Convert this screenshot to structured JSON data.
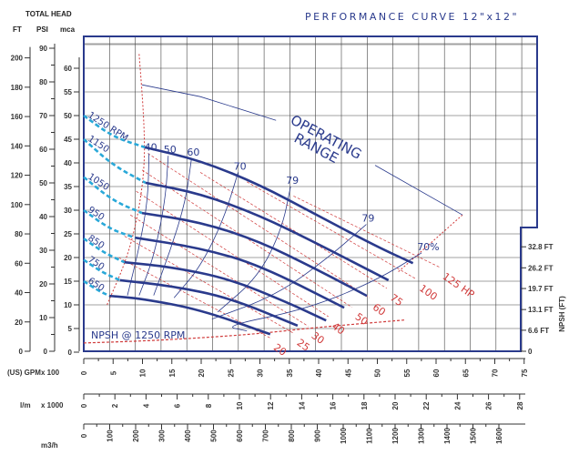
{
  "title": "PERFORMANCE CURVE 12\"x12\"",
  "header": {
    "total_head": "TOTAL HEAD",
    "ft": "FT",
    "psi": "PSI",
    "mca": "mca"
  },
  "colors": {
    "frame": "#2a3a8c",
    "curve": "#2a3a8c",
    "dashed_curve": "#29a8d8",
    "power": "#d03a3a",
    "grid": "#444444"
  },
  "chart_data": {
    "type": "line",
    "xlabel": "(US) GPM  x 100",
    "x_range": [
      0,
      75
    ],
    "ylabel_units": [
      "FT",
      "PSI",
      "mca"
    ],
    "y_range_mca": [
      0,
      65
    ],
    "axes": {
      "ft_ticks": [
        0,
        20,
        40,
        60,
        80,
        100,
        120,
        140,
        160,
        180,
        200
      ],
      "psi_ticks": [
        0,
        10,
        20,
        30,
        40,
        50,
        60,
        70,
        80,
        90
      ],
      "mca_ticks": [
        0,
        5,
        10,
        15,
        20,
        25,
        30,
        35,
        40,
        45,
        50,
        55,
        60
      ],
      "gpm_ticks": [
        0,
        5,
        10,
        15,
        20,
        25,
        30,
        35,
        40,
        45,
        50,
        55,
        60,
        65,
        70,
        75
      ],
      "lm": {
        "label": "l/m",
        "multiplier": "x 1000",
        "ticks": [
          0,
          2,
          4,
          6,
          8,
          10,
          12,
          14,
          16,
          18,
          20,
          22,
          24,
          26,
          28
        ]
      },
      "m3h": {
        "label": "m3/h",
        "ticks": [
          0,
          100,
          200,
          300,
          400,
          500,
          600,
          700,
          800,
          900,
          1000,
          1100,
          1200,
          1300,
          1400,
          1500,
          1600
        ]
      },
      "gpm_label": "(US) GPM",
      "gpm_multiplier": "x 100",
      "npsh": {
        "label": "NPSH (FT)",
        "ticks": [
          "0",
          "6.6 FT",
          "13.1 FT",
          "19.7 FT",
          "26.2 FT",
          "32.8 FT"
        ],
        "values": [
          0,
          6.6,
          13.1,
          19.7,
          26.2,
          32.8
        ]
      }
    },
    "grid": true,
    "series": [
      {
        "name": "1250 RPM",
        "dashed": [
          [
            0,
            50
          ],
          [
            5,
            45.5
          ],
          [
            10.5,
            43.3
          ]
        ],
        "solid": [
          [
            10.5,
            43.3
          ],
          [
            20,
            40.5
          ],
          [
            30,
            35.5
          ],
          [
            40,
            29
          ],
          [
            50,
            22.5
          ],
          [
            56.5,
            18.8
          ]
        ]
      },
      {
        "name": "1150",
        "dashed": [
          [
            0,
            45
          ],
          [
            5,
            39.5
          ],
          [
            10.6,
            35.8
          ]
        ],
        "solid": [
          [
            10.6,
            35.8
          ],
          [
            20,
            33.5
          ],
          [
            30,
            29
          ],
          [
            40,
            23
          ],
          [
            52.3,
            15.2
          ]
        ]
      },
      {
        "name": "1050",
        "dashed": [
          [
            0,
            37
          ],
          [
            5,
            32
          ],
          [
            10,
            29.4
          ]
        ],
        "solid": [
          [
            10,
            29.4
          ],
          [
            20,
            27.5
          ],
          [
            30,
            23.5
          ],
          [
            40,
            17.5
          ],
          [
            48.6,
            11.9
          ]
        ]
      },
      {
        "name": "950",
        "dashed": [
          [
            0,
            30
          ],
          [
            4.5,
            26
          ],
          [
            8.8,
            24.2
          ]
        ],
        "solid": [
          [
            8.8,
            24.2
          ],
          [
            20,
            22
          ],
          [
            30,
            18.5
          ],
          [
            44.7,
            9.4
          ]
        ]
      },
      {
        "name": "850",
        "dashed": [
          [
            0,
            24
          ],
          [
            3.5,
            21
          ],
          [
            7,
            19
          ]
        ],
        "solid": [
          [
            7,
            19
          ],
          [
            15,
            18
          ],
          [
            25,
            15.5
          ],
          [
            35,
            10.5
          ],
          [
            41.6,
            6.7
          ]
        ]
      },
      {
        "name": "750",
        "dashed": [
          [
            0,
            19.5
          ],
          [
            3,
            17
          ],
          [
            6.2,
            15.2
          ]
        ],
        "solid": [
          [
            6.2,
            15.2
          ],
          [
            15,
            14
          ],
          [
            25,
            11.5
          ],
          [
            36.7,
            5.6
          ]
        ]
      },
      {
        "name": "650",
        "dashed": [
          [
            0,
            15
          ],
          [
            2.5,
            13
          ],
          [
            4.4,
            11.9
          ]
        ],
        "solid": [
          [
            4.4,
            11.9
          ],
          [
            10,
            11.3
          ],
          [
            20,
            9
          ],
          [
            32,
            3.8
          ]
        ]
      }
    ],
    "efficiency_lines": [
      {
        "label": "40",
        "points": [
          [
            11.2,
            42
          ],
          [
            11,
            32
          ],
          [
            9.5,
            22
          ],
          [
            7.5,
            12
          ]
        ]
      },
      {
        "label": "50",
        "points": [
          [
            14.5,
            41.5
          ],
          [
            14,
            32
          ],
          [
            12,
            20
          ],
          [
            9.5,
            12
          ]
        ]
      },
      {
        "label": "60",
        "points": [
          [
            18.5,
            41
          ],
          [
            17.5,
            32
          ],
          [
            15,
            22
          ],
          [
            12,
            12
          ]
        ]
      },
      {
        "label": "70",
        "points": [
          [
            26.5,
            38
          ],
          [
            24,
            28
          ],
          [
            20,
            18
          ],
          [
            15.5,
            11.5
          ]
        ]
      },
      {
        "label": "79",
        "points": [
          [
            35.5,
            35
          ],
          [
            34,
            26
          ],
          [
            30,
            16
          ],
          [
            23,
            8.5
          ]
        ]
      },
      {
        "label": "79",
        "points": [
          [
            48.5,
            27
          ],
          [
            42,
            20
          ],
          [
            33,
            12
          ],
          [
            22,
            7
          ]
        ]
      },
      {
        "label": "70%",
        "points": [
          [
            58,
            21
          ],
          [
            50,
            15
          ],
          [
            38,
            9
          ],
          [
            24,
            5.5
          ],
          [
            28,
            4.5
          ]
        ]
      }
    ],
    "power_lines": [
      {
        "label": "20",
        "points": [
          [
            6,
            20
          ],
          [
            32,
            3
          ]
        ]
      },
      {
        "label": "25",
        "points": [
          [
            7,
            24.5
          ],
          [
            36,
            4
          ]
        ]
      },
      {
        "label": "30",
        "points": [
          [
            8,
            29
          ],
          [
            38.5,
            5.5
          ]
        ]
      },
      {
        "label": "40",
        "points": [
          [
            9,
            34
          ],
          [
            42,
            7.5
          ]
        ]
      },
      {
        "label": "50",
        "points": [
          [
            10,
            38.5
          ],
          [
            46,
            9.5
          ]
        ]
      },
      {
        "label": "60",
        "points": [
          [
            11,
            42
          ],
          [
            49,
            11.5
          ]
        ]
      },
      {
        "label": "75",
        "points": [
          [
            20,
            38
          ],
          [
            52,
            13.5
          ]
        ]
      },
      {
        "label": "100",
        "points": [
          [
            28,
            36
          ],
          [
            57,
            15.5
          ]
        ]
      },
      {
        "label": "125 HP",
        "points": [
          [
            36,
            33
          ],
          [
            61,
            18
          ]
        ]
      }
    ],
    "min_flow_line": [
      [
        9.5,
        63
      ],
      [
        10.3,
        50
      ],
      [
        10.5,
        40
      ],
      [
        9.5,
        30
      ],
      [
        7.5,
        20
      ],
      [
        4,
        10
      ]
    ],
    "max_flow_line": [
      [
        65,
        29
      ],
      [
        54,
        17
      ]
    ],
    "operating_range_label": [
      "OPERATING",
      "RANGE"
    ],
    "operating_range_boundary": [
      [
        [
          10,
          56.5
        ],
        [
          20,
          54
        ],
        [
          33,
          49
        ]
      ],
      [
        [
          50,
          39.5
        ],
        [
          65,
          29
        ]
      ]
    ],
    "npsh_label": "NPSH @ 1250 RPM",
    "npsh_curve_ft": [
      [
        0,
        2.6
      ],
      [
        10,
        3.2
      ],
      [
        20,
        4.2
      ],
      [
        30,
        5.5
      ],
      [
        40,
        7.5
      ],
      [
        55,
        9.8
      ]
    ]
  }
}
